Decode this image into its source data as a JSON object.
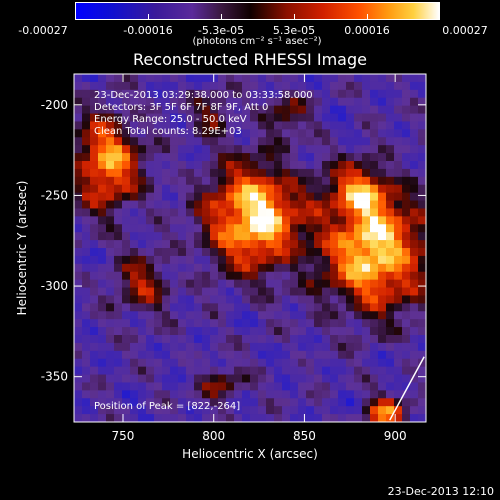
{
  "colorbar": {
    "tick_labels": [
      "-0.00027",
      "-0.00016",
      "-5.3e-05",
      "5.3e-05",
      "0.00016",
      "0.00027"
    ],
    "units_label": "(photons cm⁻² s⁻¹ asec⁻²)"
  },
  "footer": {
    "timestamp": "23-Dec-2013 12:10"
  },
  "chart_data": {
    "type": "heatmap",
    "title": "Reconstructed RHESSI Image",
    "xlabel": "Heliocentric X (arcsec)",
    "ylabel": "Heliocentric Y (arcsec)",
    "xlim": [
      723,
      917
    ],
    "ylim": [
      -375,
      -183
    ],
    "xticks": [
      750,
      800,
      850,
      900
    ],
    "yticks": [
      -200,
      -250,
      -300,
      -350
    ],
    "colorbar_range": [
      -0.00027,
      0.00027
    ],
    "annotations": [
      "23-Dec-2013 03:29:38.000 to 03:33:58.000",
      "Detectors: 3F 5F 6F 7F 8F 9F, Att 0",
      "Energy Range: 25.0 - 50.0 keV",
      "Clean    Total counts: 8.29E+03"
    ],
    "peak_label": "Position of Peak = [822,-264]",
    "peak_position": [
      822,
      -264
    ],
    "bright_sources": [
      {
        "x": 822,
        "y": -262,
        "intensity": 1.0,
        "sx": 18,
        "sy": 20
      },
      {
        "x": 889,
        "y": -282,
        "intensity": 0.95,
        "sx": 20,
        "sy": 22
      },
      {
        "x": 741,
        "y": -232,
        "intensity": 0.8,
        "sx": 13,
        "sy": 18
      },
      {
        "x": 880,
        "y": -248,
        "intensity": 0.6,
        "sx": 12,
        "sy": 11
      },
      {
        "x": 760,
        "y": -300,
        "intensity": 0.45,
        "sx": 10,
        "sy": 12
      },
      {
        "x": 895,
        "y": -370,
        "intensity": 0.7,
        "sx": 8,
        "sy": 6
      },
      {
        "x": 800,
        "y": -205,
        "intensity": 0.35,
        "sx": 8,
        "sy": 8
      },
      {
        "x": 840,
        "y": -205,
        "intensity": 0.35,
        "sx": 8,
        "sy": 8
      },
      {
        "x": 805,
        "y": -355,
        "intensity": 0.35,
        "sx": 9,
        "sy": 7
      }
    ],
    "line_annotation": {
      "x1": 897,
      "y1": -374,
      "x2": 916,
      "y2": -339
    }
  }
}
